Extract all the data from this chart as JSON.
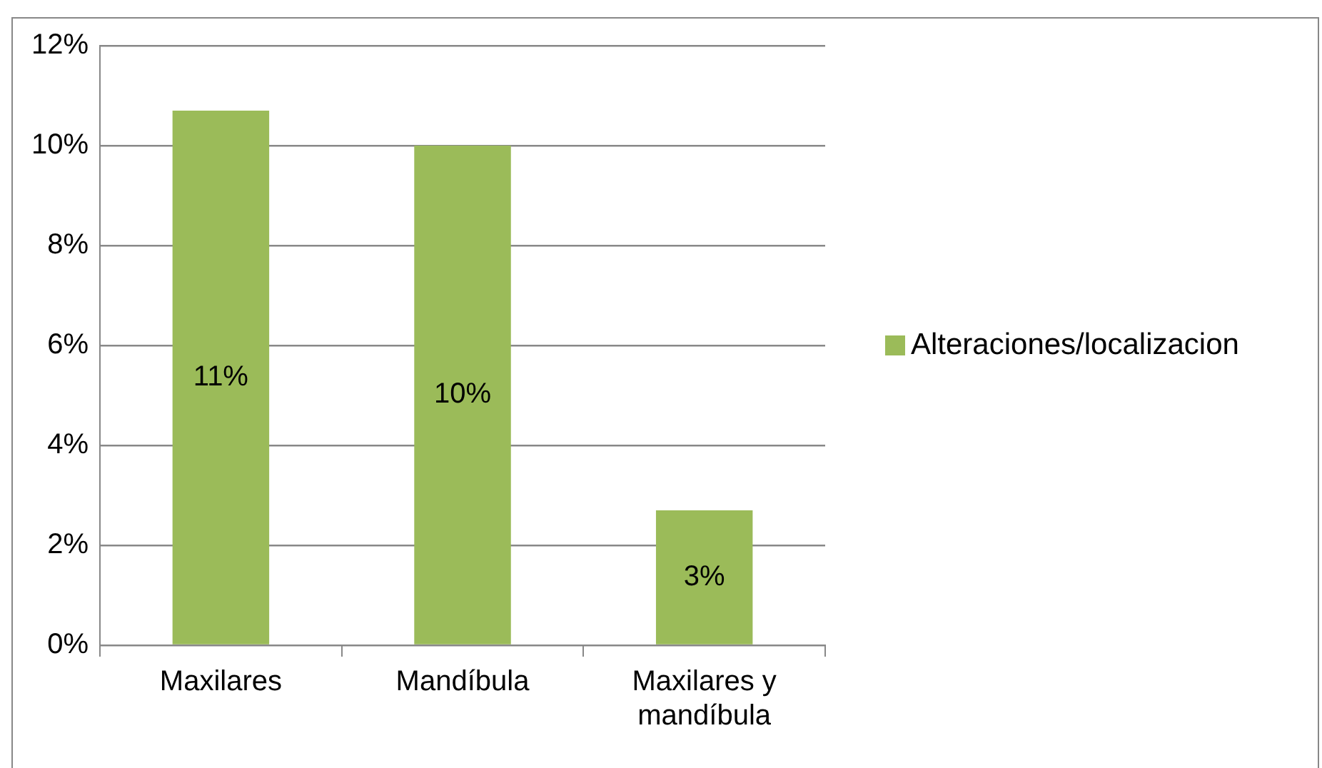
{
  "chart_data": {
    "type": "bar",
    "categories": [
      "Maxilares",
      "Mandíbula",
      "Maxilares y mandíbula"
    ],
    "series": [
      {
        "name": "Alteraciones/localizacion",
        "color": "#9bbb59",
        "values": [
          10.7,
          10,
          2.7
        ],
        "value_labels": [
          "11%",
          "10%",
          "3%"
        ]
      }
    ],
    "ylim": [
      0,
      12
    ],
    "yticks": [
      {
        "value": 0,
        "label": "0%"
      },
      {
        "value": 2,
        "label": "2%"
      },
      {
        "value": 4,
        "label": "4%"
      },
      {
        "value": 6,
        "label": "6%"
      },
      {
        "value": 8,
        "label": "8%"
      },
      {
        "value": 10,
        "label": "10%"
      },
      {
        "value": 12,
        "label": "12%"
      }
    ],
    "grid": "y",
    "legend": "right"
  }
}
